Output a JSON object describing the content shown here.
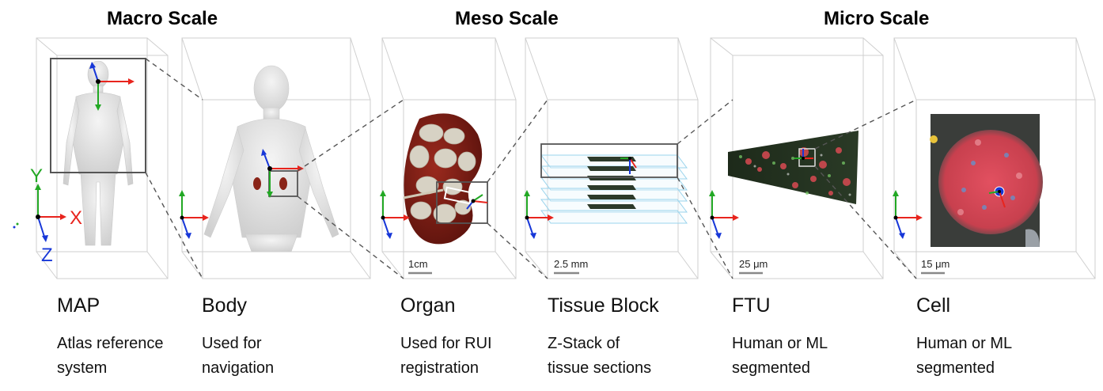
{
  "scales": [
    {
      "id": "macro",
      "title": "Macro Scale"
    },
    {
      "id": "meso",
      "title": "Meso Scale"
    },
    {
      "id": "micro",
      "title": "Micro Scale"
    }
  ],
  "stages": [
    {
      "id": "map",
      "name": "MAP",
      "desc": [
        "Atlas reference",
        "system"
      ],
      "scale_bar": ""
    },
    {
      "id": "body",
      "name": "Body",
      "desc": [
        "Used for",
        "navigation"
      ],
      "scale_bar": ""
    },
    {
      "id": "organ",
      "name": "Organ",
      "desc": [
        "Used for RUI",
        "registration"
      ],
      "scale_bar": "1cm"
    },
    {
      "id": "tissue",
      "name": "Tissue Block",
      "desc": [
        "Z-Stack of",
        "tissue sections"
      ],
      "scale_bar": "2.5 mm"
    },
    {
      "id": "ftu",
      "name": "FTU",
      "desc": [
        "Human or ML",
        "segmented"
      ],
      "scale_bar": "25 μm"
    },
    {
      "id": "cell",
      "name": "Cell",
      "desc": [
        "Human or ML",
        "segmented"
      ],
      "scale_bar": "15 μm"
    }
  ],
  "axes": {
    "x": "X",
    "y": "Y",
    "z": "Z"
  },
  "colors": {
    "x_axis": "#e8241d",
    "y_axis": "#22a824",
    "z_axis": "#1737d8",
    "frame": "#cfcfcf",
    "tissue_red": "#d94a52",
    "organ": "#7a1c14"
  }
}
